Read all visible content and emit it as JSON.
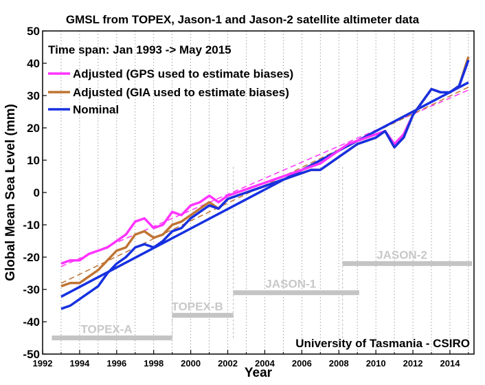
{
  "chart_data": {
    "type": "line",
    "title": "GMSL from TOPEX, Jason-1 and Jason-2 satellite altimeter data",
    "xlabel": "Year",
    "ylabel": "Global Mean Sea Level (mm)",
    "xlim": [
      1992,
      2015.3
    ],
    "ylim": [
      -50,
      50
    ],
    "grid": "vertical-dotted",
    "legend_position": "top-left",
    "annotations": {
      "time_span": "Time span: Jan 1993 -> May 2015",
      "credit": "University of Tasmania - CSIRO"
    },
    "x_ticks": [
      "1992",
      "1994",
      "1996",
      "1998",
      "2000",
      "2002",
      "2004",
      "2006",
      "2008",
      "2010",
      "2012",
      "2014"
    ],
    "y_ticks": [
      "50",
      "40",
      "30",
      "20",
      "10",
      "0",
      "-10",
      "-20",
      "-30",
      "-40",
      "-50"
    ],
    "x": [
      1993.0,
      1993.5,
      1994.0,
      1994.5,
      1995.0,
      1995.5,
      1996.0,
      1996.5,
      1997.0,
      1997.5,
      1998.0,
      1998.5,
      1999.0,
      1999.5,
      2000.0,
      2000.5,
      2001.0,
      2001.5,
      2002.0,
      2002.5,
      2003.0,
      2003.5,
      2004.0,
      2004.5,
      2005.0,
      2005.5,
      2006.0,
      2006.5,
      2007.0,
      2007.5,
      2008.0,
      2008.5,
      2009.0,
      2009.5,
      2010.0,
      2010.5,
      2011.0,
      2011.5,
      2012.0,
      2012.5,
      2013.0,
      2013.5,
      2014.0,
      2014.5,
      2015.0
    ],
    "series": [
      {
        "name": "Adjusted (GPS used to estimate biases)",
        "color": "#ff33ff",
        "values": [
          -22,
          -21,
          -21,
          -19,
          -18,
          -17,
          -15,
          -13,
          -9,
          -8,
          -11,
          -10,
          -6,
          -7,
          -4,
          -3,
          -1,
          -3,
          -1,
          0,
          1,
          2,
          3,
          4,
          5,
          6,
          7,
          8,
          9,
          11,
          13,
          15,
          16,
          17,
          18,
          19,
          15,
          18,
          24,
          28,
          32,
          31,
          31,
          33,
          41
        ]
      },
      {
        "name": "Adjusted (GIA used to estimate biases)",
        "color": "#bf7434",
        "values": [
          -29,
          -28,
          -28,
          -26,
          -24,
          -21,
          -18,
          -17,
          -13,
          -12,
          -14,
          -13,
          -10,
          -9,
          -7,
          -5,
          -3,
          -5,
          -2,
          -1,
          0,
          1,
          2,
          3,
          4,
          5,
          6,
          7,
          7,
          9,
          11,
          13,
          15,
          16,
          17,
          19,
          14,
          17,
          24,
          28,
          32,
          31,
          31,
          33,
          42
        ]
      },
      {
        "name": "Nominal",
        "color": "#1630e0",
        "values": [
          -36,
          -35,
          -33,
          -31,
          -29,
          -25,
          -22,
          -20,
          -17,
          -16,
          -17,
          -15,
          -12,
          -11,
          -8,
          -6,
          -4,
          -5,
          -2,
          -1,
          0,
          1,
          2,
          3,
          4,
          5,
          6,
          7,
          7,
          9,
          11,
          13,
          15,
          16,
          17,
          19,
          14,
          17,
          24,
          28,
          32,
          31,
          31,
          33,
          41
        ]
      }
    ],
    "missions": [
      {
        "name": "TOPEX-A",
        "start": 1992.5,
        "end": 1999.0,
        "level": -45
      },
      {
        "name": "TOPEX-B",
        "start": 1999.0,
        "end": 2002.3,
        "level": -38
      },
      {
        "name": "JASON-1",
        "start": 2002.3,
        "end": 2009.1,
        "level": -31
      },
      {
        "name": "JASON-2",
        "start": 2008.2,
        "end": 2015.2,
        "level": -22
      }
    ]
  }
}
